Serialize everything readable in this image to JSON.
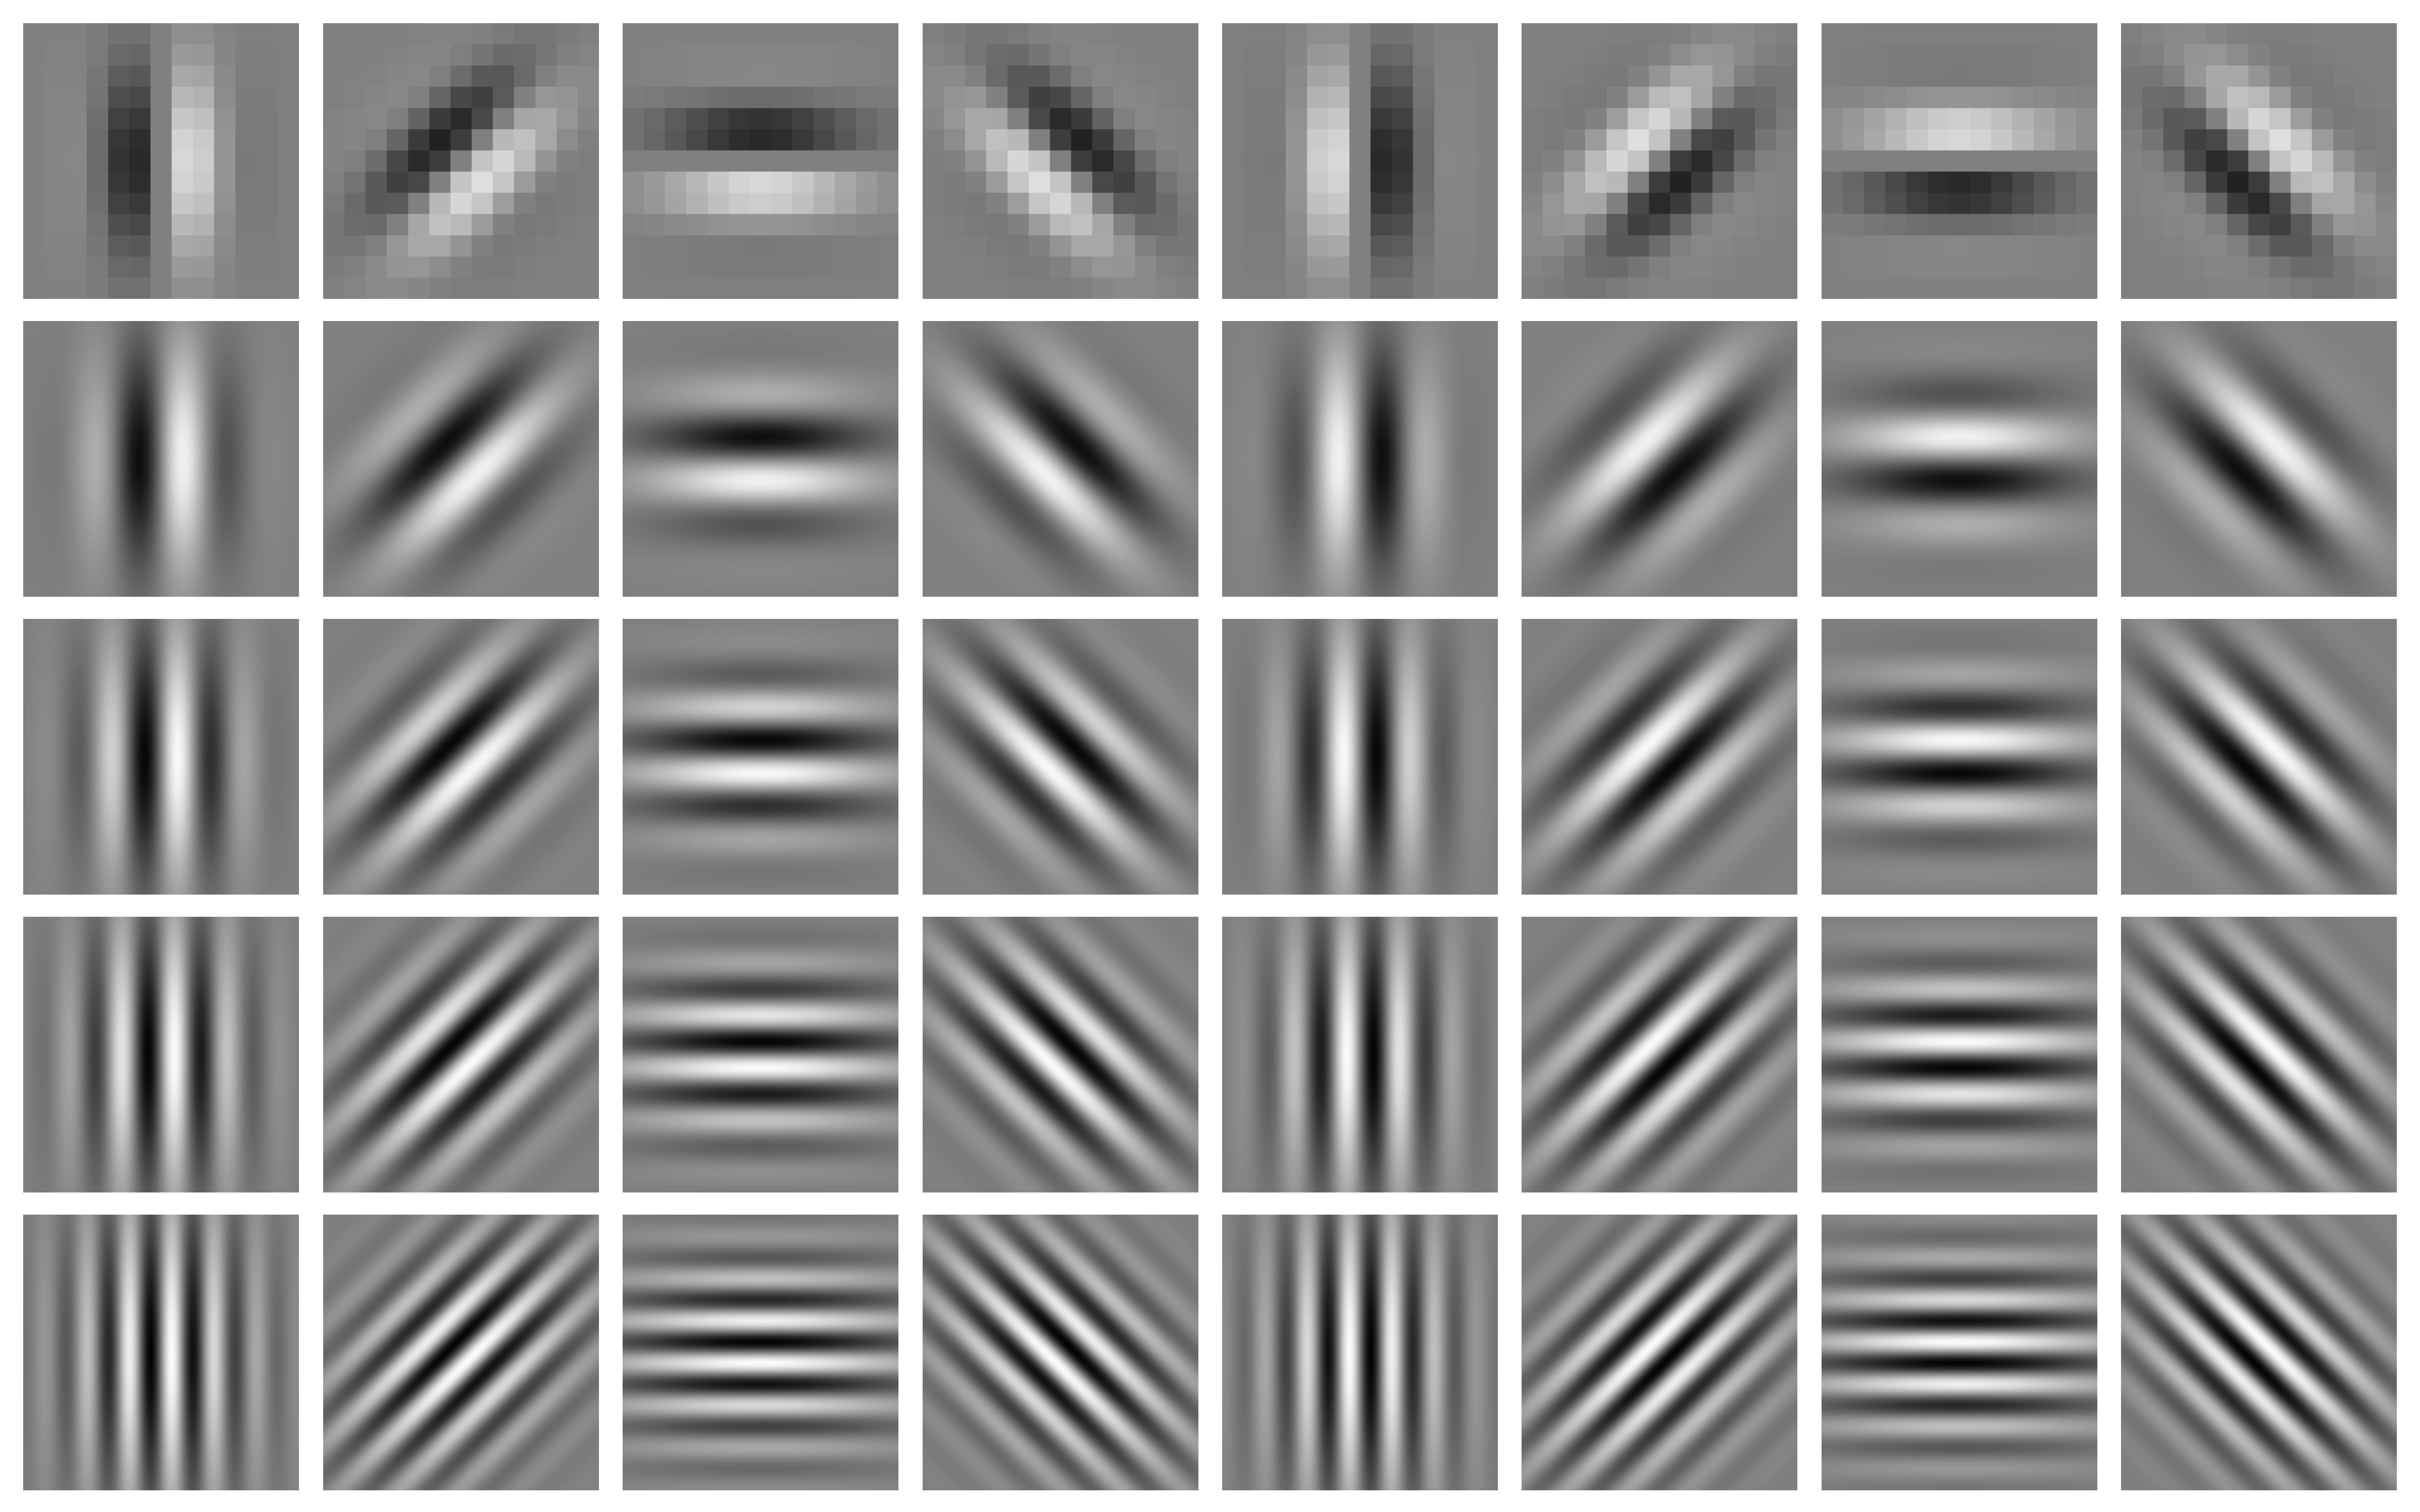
{
  "filter_bank": {
    "row_count": 5,
    "column_count": 8,
    "background_gray": "#808080",
    "separator_color": "#ffffff",
    "scale_wavelengths": [
      2.2,
      1.4,
      1.0,
      0.78,
      0.62
    ],
    "orientations_deg": [
      0,
      45,
      90,
      135,
      180,
      225,
      270,
      315
    ],
    "rows": [
      {
        "scale_index": 1
      },
      {
        "scale_index": 2
      },
      {
        "scale_index": 3
      },
      {
        "scale_index": 4
      },
      {
        "scale_index": 5
      }
    ]
  }
}
